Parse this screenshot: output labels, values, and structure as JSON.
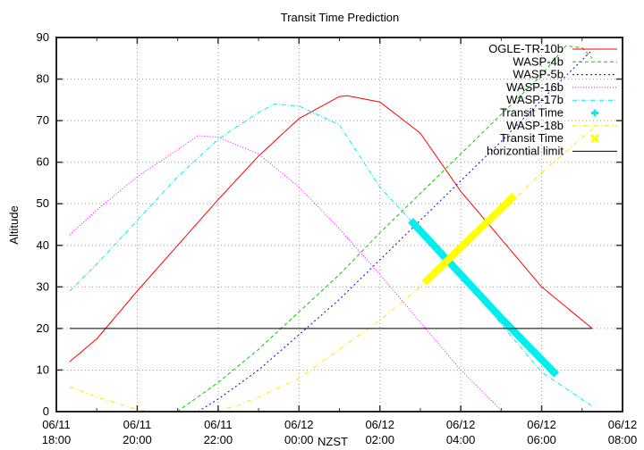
{
  "chart_data": {
    "type": "line",
    "title": "Transit Time Prediction",
    "xlabel": "NZST",
    "ylabel": "Altitude",
    "ylim": [
      0,
      90
    ],
    "yticks": [
      0,
      10,
      20,
      30,
      40,
      50,
      60,
      70,
      80,
      90
    ],
    "xlim_hours_from_0611_1800": [
      0,
      14
    ],
    "xticks": [
      {
        "h": 0,
        "date": "06/11",
        "time": "18:00"
      },
      {
        "h": 2,
        "date": "06/11",
        "time": "20:00"
      },
      {
        "h": 4,
        "date": "06/11",
        "time": "22:00"
      },
      {
        "h": 6,
        "date": "06/12",
        "time": "00:00"
      },
      {
        "h": 8,
        "date": "06/12",
        "time": "02:00"
      },
      {
        "h": 10,
        "date": "06/12",
        "time": "04:00"
      },
      {
        "h": 12,
        "date": "06/12",
        "time": "06:00"
      },
      {
        "h": 14,
        "date": "06/12",
        "time": "08:00"
      }
    ],
    "grid": true,
    "legend_position": "top-right",
    "series": [
      {
        "name": "OGLE-TR-10b",
        "color": "#ff0000",
        "dash": "",
        "points": [
          [
            0.33,
            12
          ],
          [
            1,
            17.5
          ],
          [
            2,
            29
          ],
          [
            3,
            40
          ],
          [
            4,
            51
          ],
          [
            5,
            61.5
          ],
          [
            6,
            70.5
          ],
          [
            7,
            75.8
          ],
          [
            7.2,
            76
          ],
          [
            8,
            74.5
          ],
          [
            9,
            67
          ],
          [
            10,
            53
          ],
          [
            11,
            41.5
          ],
          [
            12,
            30
          ],
          [
            13.25,
            20
          ]
        ]
      },
      {
        "name": "WASP-4b",
        "color": "#00cc00",
        "dash": "4,3",
        "points": [
          [
            2.99,
            0
          ],
          [
            4,
            7
          ],
          [
            5,
            15
          ],
          [
            6,
            24
          ],
          [
            7,
            33
          ],
          [
            8,
            43
          ],
          [
            9,
            52.5
          ],
          [
            10,
            62
          ],
          [
            11,
            71.5
          ],
          [
            12,
            81
          ],
          [
            12.6,
            88
          ],
          [
            13,
            87.5
          ],
          [
            13.25,
            85
          ]
        ]
      },
      {
        "name": "WASP-5b",
        "color": "#0000ff",
        "dash": "2,3",
        "points": [
          [
            3.5,
            0
          ],
          [
            4,
            3
          ],
          [
            5,
            10
          ],
          [
            6,
            18.5
          ],
          [
            7,
            27
          ],
          [
            8,
            36.5
          ],
          [
            9,
            46
          ],
          [
            10,
            55.5
          ],
          [
            11,
            65
          ],
          [
            12,
            75
          ],
          [
            13.25,
            87
          ]
        ]
      },
      {
        "name": "WASP-16b",
        "color": "#ff00ff",
        "dash": "1,2",
        "points": [
          [
            0.33,
            42.5
          ],
          [
            1,
            48.5
          ],
          [
            2,
            56.5
          ],
          [
            3,
            63
          ],
          [
            3.5,
            66.4
          ],
          [
            4,
            66
          ],
          [
            5,
            62
          ],
          [
            6,
            54
          ],
          [
            7,
            44
          ],
          [
            8,
            33
          ],
          [
            9,
            21.5
          ],
          [
            10,
            10
          ],
          [
            11,
            0.3
          ]
        ]
      },
      {
        "name": "WASP-17b",
        "color": "#00eeee",
        "dash": "5,2,1,2",
        "points": [
          [
            0.33,
            29
          ],
          [
            1,
            35.5
          ],
          [
            2,
            46
          ],
          [
            3,
            56.5
          ],
          [
            4,
            65.5
          ],
          [
            5,
            72
          ],
          [
            5.4,
            74
          ],
          [
            6,
            73.5
          ],
          [
            7,
            69
          ],
          [
            8,
            54
          ],
          [
            8.76,
            46
          ],
          [
            10,
            33
          ],
          [
            11,
            21
          ],
          [
            12,
            9.5
          ],
          [
            13.25,
            1.3
          ]
        ]
      },
      {
        "name": "Transit Time",
        "color": "#00eeee",
        "marker": "plus",
        "thick": true,
        "points": [
          [
            8.76,
            46
          ],
          [
            10,
            33
          ],
          [
            11,
            22.5
          ],
          [
            12.37,
            8.8
          ]
        ]
      },
      {
        "name": "WASP-18b",
        "color": "#eeee00",
        "dash": "5,3,1,3",
        "points": [
          [
            0.33,
            6
          ],
          [
            1,
            3.5
          ],
          [
            2,
            0.5
          ],
          [
            2.5,
            0
          ],
          [
            3.9,
            0
          ],
          [
            4.5,
            1.5
          ],
          [
            5,
            3.5
          ],
          [
            6,
            8
          ],
          [
            7,
            15
          ],
          [
            8,
            22
          ],
          [
            9,
            30
          ],
          [
            10,
            38.5
          ],
          [
            11,
            48
          ],
          [
            12,
            57.5
          ],
          [
            13.25,
            68
          ]
        ]
      },
      {
        "name": "Transit Time",
        "color": "#ffff00",
        "marker": "cross",
        "thick": true,
        "points": [
          [
            9.1,
            31
          ],
          [
            10,
            39.5
          ],
          [
            11.33,
            52
          ]
        ]
      },
      {
        "name": "horizontial limit",
        "color": "#000000",
        "dash": "",
        "points": [
          [
            0.33,
            20
          ],
          [
            13.25,
            20
          ]
        ]
      }
    ]
  }
}
